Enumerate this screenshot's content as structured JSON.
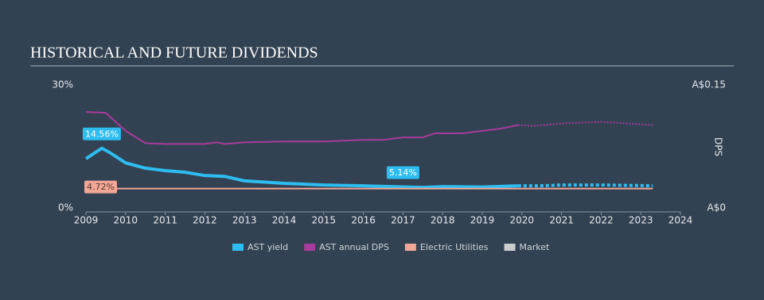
{
  "chart_data": {
    "type": "line",
    "title": "HISTORICAL AND FUTURE DIVIDENDS",
    "y2_label": "DPS",
    "xlim": [
      2009,
      2024
    ],
    "xticks": [
      2009,
      2010,
      2011,
      2012,
      2013,
      2014,
      2015,
      2016,
      2017,
      2018,
      2019,
      2020,
      2021,
      2022,
      2023,
      2024
    ],
    "ylim": [
      0,
      30
    ],
    "yticks": [
      {
        "value": 0,
        "label": "0%"
      },
      {
        "value": 30,
        "label": "30%"
      }
    ],
    "y2lim": [
      0,
      0.15
    ],
    "y2ticks": [
      {
        "value": 0,
        "label": "A$0"
      },
      {
        "value": 0.15,
        "label": "A$0.15"
      }
    ],
    "forecast_from": 2019.9,
    "series": [
      {
        "name": "AST yield",
        "color": "#2ebdf0",
        "width": 4,
        "forecast_dotted": true,
        "x": [
          2009,
          2009.2,
          2009.4,
          2009.6,
          2010,
          2010.5,
          2011,
          2011.5,
          2012,
          2012.5,
          2013,
          2014,
          2015,
          2016,
          2017,
          2017.5,
          2018,
          2019,
          2019.9,
          2020.5,
          2021,
          2022,
          2023.3
        ],
        "values": [
          12,
          13.3,
          14.56,
          13.5,
          11,
          9.7,
          9.1,
          8.7,
          7.9,
          7.7,
          6.6,
          6,
          5.6,
          5.4,
          5.14,
          5.0,
          5.2,
          5.1,
          5.4,
          5.4,
          5.6,
          5.6,
          5.4
        ],
        "value_labels": [
          null,
          null,
          "14.56%",
          null,
          null,
          null,
          null,
          null,
          null,
          null,
          null,
          null,
          null,
          null,
          "5.14%",
          null,
          null,
          null,
          null,
          null,
          null,
          null,
          null
        ]
      },
      {
        "name": "AST annual DPS",
        "color": "#a63c9b",
        "width": 2,
        "axis": "y2",
        "forecast_dotted": true,
        "x": [
          2009,
          2009.5,
          2010,
          2010.5,
          2011,
          2012,
          2012.3,
          2012.5,
          2013,
          2014,
          2015,
          2016,
          2016.5,
          2017,
          2017.5,
          2017.8,
          2018.5,
          2019.5,
          2019.9,
          2020.3,
          2021,
          2022,
          2023.3
        ],
        "values": [
          0.117,
          0.116,
          0.094,
          0.079,
          0.078,
          0.078,
          0.08,
          0.078,
          0.08,
          0.081,
          0.081,
          0.083,
          0.083,
          0.086,
          0.086,
          0.091,
          0.091,
          0.097,
          0.101,
          0.1,
          0.103,
          0.105,
          0.101
        ]
      },
      {
        "name": "Electric Utilities",
        "color": "#f2a696",
        "width": 2,
        "forecast_dotted": false,
        "x": [
          2009,
          2019.9,
          2023.3
        ],
        "values": [
          4.72,
          4.72,
          4.72
        ],
        "value_labels": [
          "4.72%",
          null,
          null
        ]
      },
      {
        "name": "Market",
        "color": "#cccccc",
        "width": 2,
        "forecast_dotted": false,
        "x": [],
        "values": []
      }
    ]
  }
}
